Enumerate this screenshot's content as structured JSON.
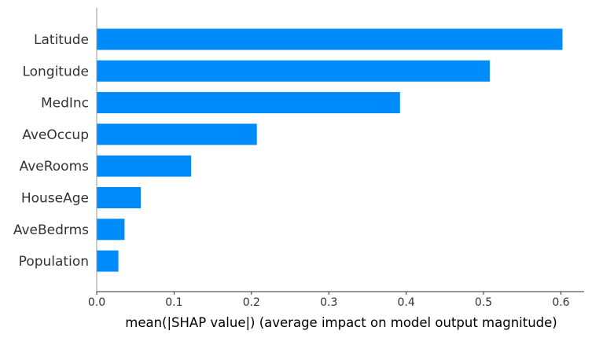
{
  "chart_data": {
    "type": "bar",
    "orientation": "horizontal",
    "categories": [
      "Latitude",
      "Longitude",
      "MedInc",
      "AveOccup",
      "AveRooms",
      "HouseAge",
      "AveBedrms",
      "Population"
    ],
    "values": [
      0.602,
      0.508,
      0.392,
      0.207,
      0.122,
      0.057,
      0.036,
      0.028
    ],
    "xlabel": "mean(|SHAP value|) (average impact on model output magnitude)",
    "ylabel": "",
    "xlim": [
      0,
      0.63
    ],
    "xticks": [
      0.0,
      0.1,
      0.2,
      0.3,
      0.4,
      0.5,
      0.6
    ],
    "xtick_labels": [
      "0.0",
      "0.1",
      "0.2",
      "0.3",
      "0.4",
      "0.5",
      "0.6"
    ],
    "bar_color": "#008bfb",
    "axis_color": "#999999",
    "grid": false,
    "legend": "none"
  }
}
